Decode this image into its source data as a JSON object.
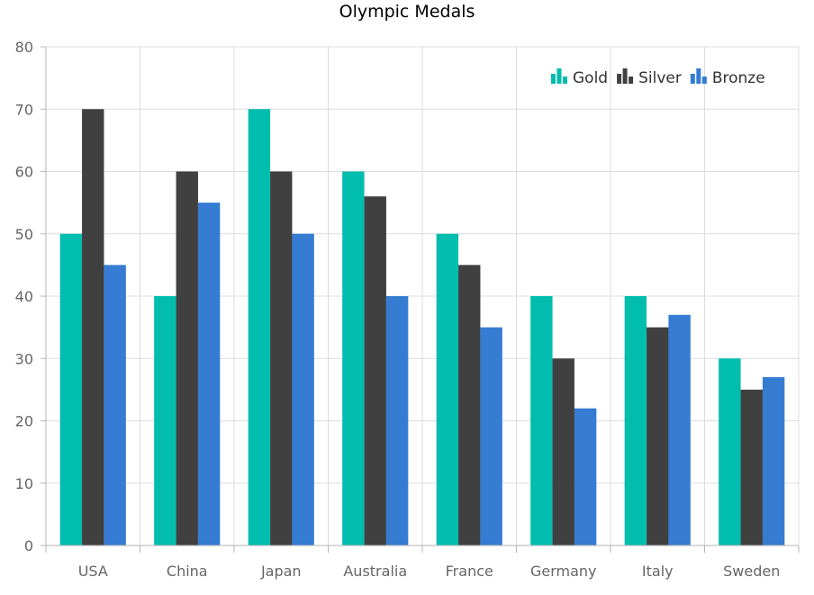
{
  "chart_data": {
    "type": "bar",
    "title": "Olympic Medals",
    "xlabel": "",
    "ylabel": "",
    "categories": [
      "USA",
      "China",
      "Japan",
      "Australia",
      "France",
      "Germany",
      "Italy",
      "Sweden"
    ],
    "series": [
      {
        "name": "Gold",
        "values": [
          50,
          40,
          70,
          60,
          50,
          40,
          40,
          30
        ],
        "color": "#00bdae"
      },
      {
        "name": "Silver",
        "values": [
          70,
          60,
          60,
          56,
          45,
          30,
          35,
          25
        ],
        "color": "#404041"
      },
      {
        "name": "Bronze",
        "values": [
          45,
          55,
          50,
          40,
          35,
          22,
          37,
          27
        ],
        "color": "#357cd2"
      }
    ],
    "ylim": [
      0,
      80
    ],
    "yticks": [
      0,
      10,
      20,
      30,
      40,
      50,
      60,
      70,
      80
    ],
    "grid": true,
    "legend_position": "top-right"
  }
}
